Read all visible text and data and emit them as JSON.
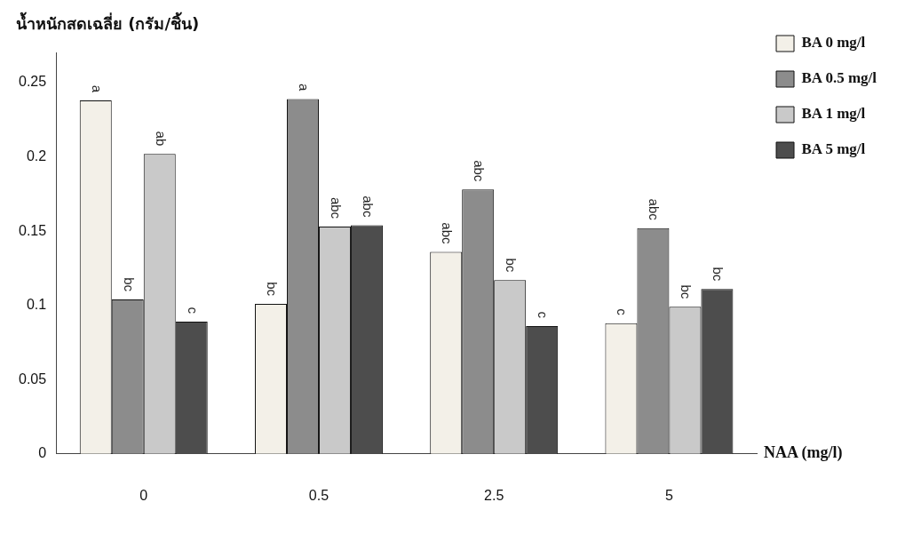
{
  "chart_data": {
    "type": "bar",
    "ylabel": "น้ำหนักสดเฉลี่ย (กรัม/ชิ้น)",
    "xlabel": "NAA (mg/l)",
    "categories": [
      "0",
      "0.5",
      "2.5",
      "5"
    ],
    "series": [
      {
        "name": "BA 0 mg/l",
        "color": "#f3f0e8",
        "values": [
          0.238,
          0.101,
          0.136,
          0.088
        ],
        "value_labels": [
          "a",
          "bc",
          "abc",
          "c"
        ]
      },
      {
        "name": "BA 0.5 mg/l",
        "color": "#8c8c8c",
        "values": [
          0.104,
          0.239,
          0.178,
          0.152
        ],
        "value_labels": [
          "bc",
          "a",
          "abc",
          "abc"
        ]
      },
      {
        "name": "BA 1 mg/l",
        "color": "#c9c9c9",
        "values": [
          0.202,
          0.153,
          0.117,
          0.099
        ],
        "value_labels": [
          "ab",
          "abc",
          "bc",
          "bc"
        ]
      },
      {
        "name": "BA 5 mg/l",
        "color": "#4d4d4d",
        "values": [
          0.089,
          0.154,
          0.086,
          0.111
        ],
        "value_labels": [
          "c",
          "abc",
          "c",
          "bc"
        ]
      }
    ],
    "ylim": [
      0,
      0.27
    ],
    "yticks": [
      0,
      0.05,
      0.1,
      0.15,
      0.2,
      0.25
    ],
    "grid": false,
    "legend": "top right"
  }
}
